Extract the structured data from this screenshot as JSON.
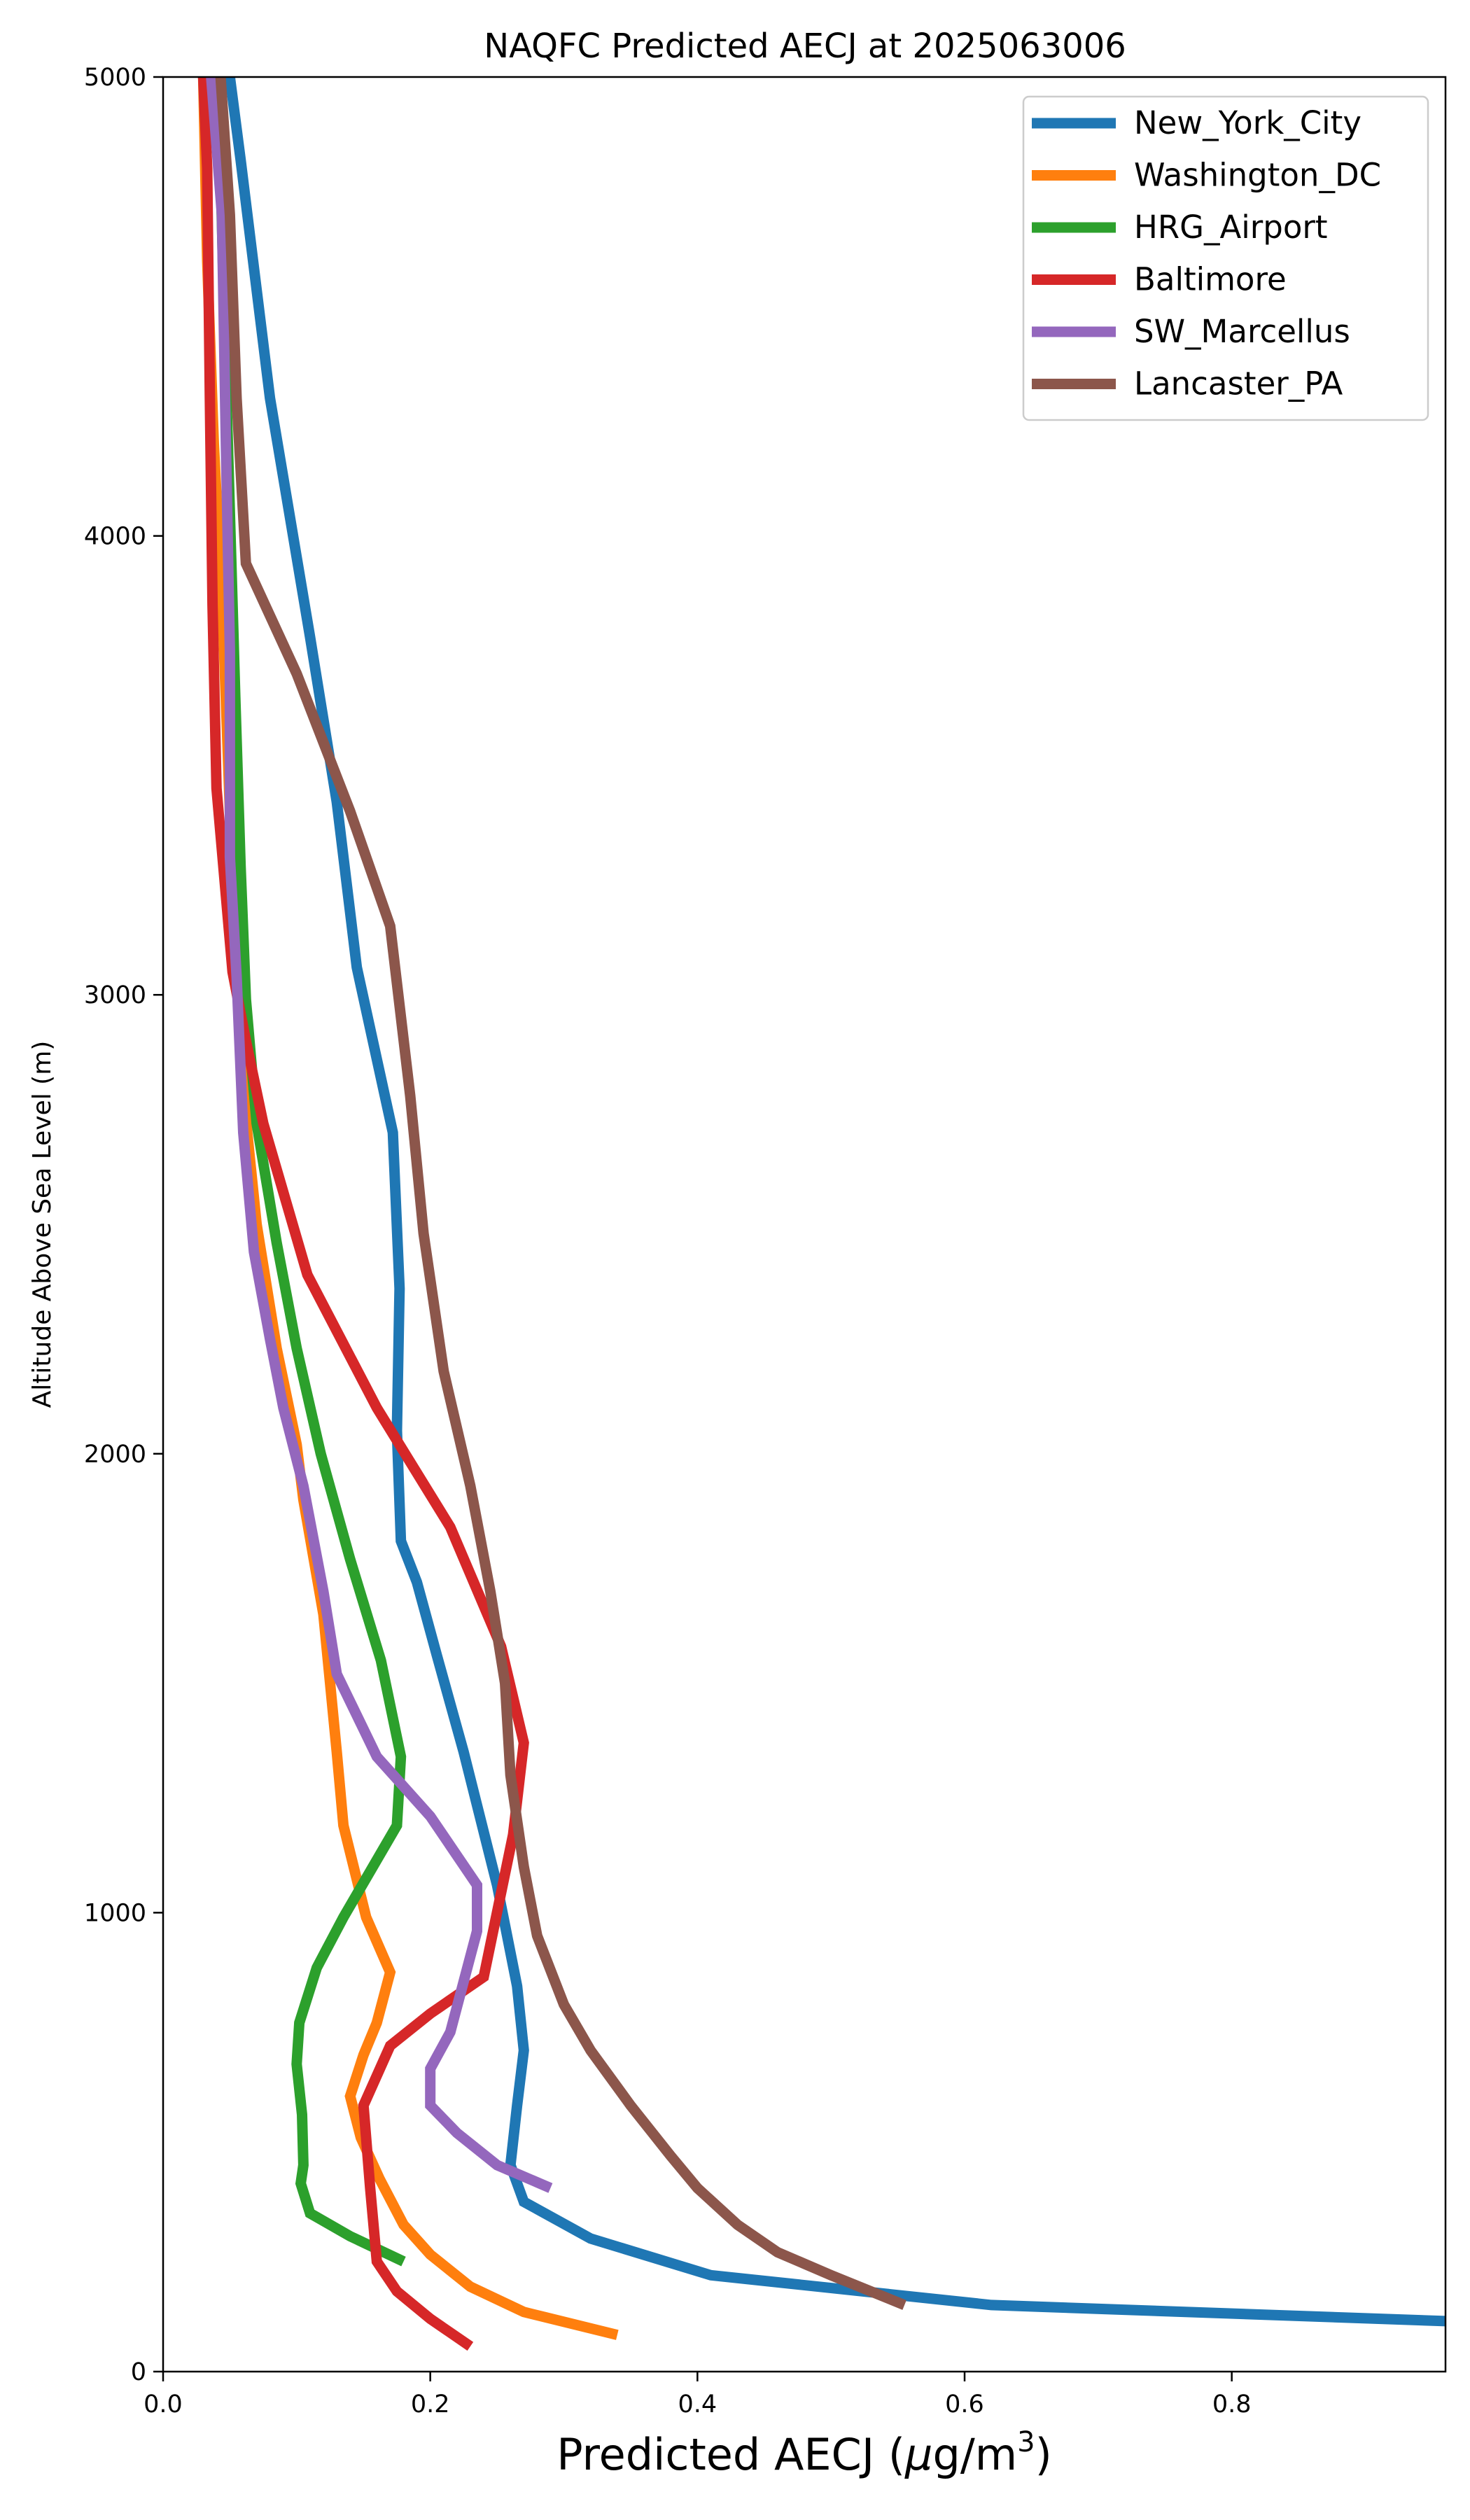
{
  "chart_data": {
    "type": "line",
    "title": "NAQFC Predicted AECJ at 2025063006",
    "xlabel": "Predicted AECJ (μg/m³)",
    "xlabel_main": "Predicted AECJ (",
    "xlabel_mu": "μ",
    "xlabel_unit": "g/m",
    "xlabel_sup": "3",
    "xlabel_close": ")",
    "ylabel": "Altitude Above Sea Level (m)",
    "xlim": [
      0.0,
      0.96
    ],
    "ylim": [
      0,
      5000
    ],
    "x_ticks": [
      {
        "value": 0.0,
        "label": "0.0"
      },
      {
        "value": 0.2,
        "label": "0.2"
      },
      {
        "value": 0.4,
        "label": "0.4"
      },
      {
        "value": 0.6,
        "label": "0.6"
      },
      {
        "value": 0.8,
        "label": "0.8"
      }
    ],
    "y_ticks": [
      {
        "value": 0,
        "label": "0"
      },
      {
        "value": 1000,
        "label": "1000"
      },
      {
        "value": 2000,
        "label": "2000"
      },
      {
        "value": 3000,
        "label": "3000"
      },
      {
        "value": 4000,
        "label": "4000"
      },
      {
        "value": 5000,
        "label": "5000"
      }
    ],
    "grid": false,
    "legend_position": "top-right",
    "series": [
      {
        "name": "New_York_City",
        "color": "#1f77b4",
        "points": [
          [
            0.96,
            110
          ],
          [
            0.62,
            145
          ],
          [
            0.41,
            210
          ],
          [
            0.32,
            290
          ],
          [
            0.27,
            370
          ],
          [
            0.26,
            450
          ],
          [
            0.265,
            580
          ],
          [
            0.27,
            700
          ],
          [
            0.265,
            840
          ],
          [
            0.25,
            1060
          ],
          [
            0.225,
            1350
          ],
          [
            0.205,
            1560
          ],
          [
            0.19,
            1720
          ],
          [
            0.178,
            1810
          ],
          [
            0.175,
            2050
          ],
          [
            0.177,
            2360
          ],
          [
            0.172,
            2700
          ],
          [
            0.145,
            3060
          ],
          [
            0.13,
            3420
          ],
          [
            0.11,
            3780
          ],
          [
            0.08,
            4300
          ],
          [
            0.058,
            4820
          ],
          [
            0.05,
            5000
          ]
        ]
      },
      {
        "name": "Washington_DC",
        "color": "#ff7f0e",
        "points": [
          [
            0.34,
            80
          ],
          [
            0.27,
            130
          ],
          [
            0.23,
            185
          ],
          [
            0.2,
            255
          ],
          [
            0.18,
            320
          ],
          [
            0.162,
            420
          ],
          [
            0.148,
            510
          ],
          [
            0.14,
            600
          ],
          [
            0.15,
            690
          ],
          [
            0.16,
            760
          ],
          [
            0.17,
            870
          ],
          [
            0.152,
            990
          ],
          [
            0.135,
            1190
          ],
          [
            0.13,
            1350
          ],
          [
            0.12,
            1650
          ],
          [
            0.105,
            1900
          ],
          [
            0.1,
            2020
          ],
          [
            0.085,
            2230
          ],
          [
            0.07,
            2500
          ],
          [
            0.063,
            2700
          ],
          [
            0.056,
            3050
          ],
          [
            0.05,
            3400
          ],
          [
            0.045,
            3800
          ],
          [
            0.038,
            4200
          ],
          [
            0.033,
            4600
          ],
          [
            0.03,
            5000
          ]
        ]
      },
      {
        "name": "HRG_Airport",
        "color": "#2ca02c",
        "points": [
          [
            0.18,
            240
          ],
          [
            0.14,
            295
          ],
          [
            0.11,
            345
          ],
          [
            0.103,
            410
          ],
          [
            0.105,
            450
          ],
          [
            0.104,
            560
          ],
          [
            0.1,
            670
          ],
          [
            0.102,
            760
          ],
          [
            0.115,
            880
          ],
          [
            0.135,
            990
          ],
          [
            0.175,
            1190
          ],
          [
            0.178,
            1340
          ],
          [
            0.163,
            1550
          ],
          [
            0.14,
            1770
          ],
          [
            0.118,
            2000
          ],
          [
            0.1,
            2230
          ],
          [
            0.085,
            2460
          ],
          [
            0.07,
            2720
          ],
          [
            0.062,
            2990
          ],
          [
            0.058,
            3280
          ],
          [
            0.054,
            3650
          ],
          [
            0.05,
            4050
          ],
          [
            0.046,
            4450
          ],
          [
            0.043,
            4800
          ],
          [
            0.04,
            5000
          ]
        ]
      },
      {
        "name": "Baltimore",
        "color": "#d62728",
        "points": [
          [
            0.23,
            55
          ],
          [
            0.2,
            115
          ],
          [
            0.175,
            175
          ],
          [
            0.16,
            240
          ],
          [
            0.155,
            400
          ],
          [
            0.15,
            580
          ],
          [
            0.17,
            710
          ],
          [
            0.2,
            780
          ],
          [
            0.24,
            860
          ],
          [
            0.262,
            1170
          ],
          [
            0.27,
            1370
          ],
          [
            0.253,
            1580
          ],
          [
            0.215,
            1840
          ],
          [
            0.16,
            2100
          ],
          [
            0.108,
            2390
          ],
          [
            0.075,
            2720
          ],
          [
            0.062,
            2900
          ],
          [
            0.052,
            3050
          ],
          [
            0.04,
            3450
          ],
          [
            0.037,
            3850
          ],
          [
            0.035,
            4300
          ],
          [
            0.033,
            4800
          ],
          [
            0.03,
            5000
          ]
        ]
      },
      {
        "name": "SW_Marcellus",
        "color": "#9467bd",
        "points": [
          [
            0.29,
            400
          ],
          [
            0.25,
            450
          ],
          [
            0.22,
            520
          ],
          [
            0.2,
            580
          ],
          [
            0.2,
            660
          ],
          [
            0.215,
            740
          ],
          [
            0.225,
            850
          ],
          [
            0.235,
            960
          ],
          [
            0.235,
            1060
          ],
          [
            0.2,
            1210
          ],
          [
            0.16,
            1340
          ],
          [
            0.13,
            1520
          ],
          [
            0.12,
            1700
          ],
          [
            0.105,
            1930
          ],
          [
            0.09,
            2100
          ],
          [
            0.08,
            2250
          ],
          [
            0.068,
            2440
          ],
          [
            0.06,
            2700
          ],
          [
            0.055,
            3040
          ],
          [
            0.05,
            3300
          ],
          [
            0.05,
            3750
          ],
          [
            0.047,
            4200
          ],
          [
            0.044,
            4700
          ],
          [
            0.036,
            5000
          ]
        ]
      },
      {
        "name": "Lancaster_PA",
        "color": "#8c564b",
        "points": [
          [
            0.555,
            145
          ],
          [
            0.5,
            210
          ],
          [
            0.46,
            260
          ],
          [
            0.43,
            320
          ],
          [
            0.4,
            400
          ],
          [
            0.38,
            470
          ],
          [
            0.35,
            580
          ],
          [
            0.32,
            700
          ],
          [
            0.3,
            800
          ],
          [
            0.28,
            950
          ],
          [
            0.27,
            1100
          ],
          [
            0.26,
            1300
          ],
          [
            0.256,
            1500
          ],
          [
            0.245,
            1700
          ],
          [
            0.23,
            1930
          ],
          [
            0.21,
            2180
          ],
          [
            0.195,
            2480
          ],
          [
            0.185,
            2780
          ],
          [
            0.17,
            3150
          ],
          [
            0.14,
            3400
          ],
          [
            0.1,
            3700
          ],
          [
            0.062,
            3940
          ],
          [
            0.055,
            4300
          ],
          [
            0.05,
            4700
          ],
          [
            0.043,
            5000
          ]
        ]
      }
    ]
  }
}
